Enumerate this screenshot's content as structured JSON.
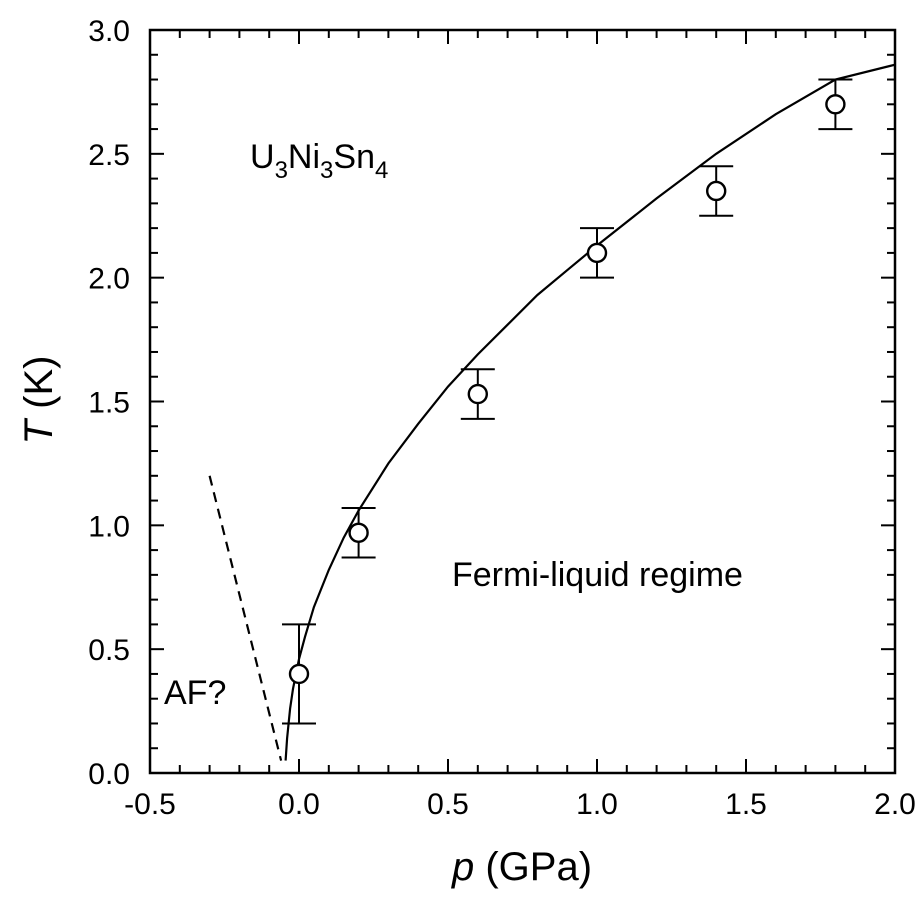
{
  "chart_data": {
    "type": "scatter",
    "title": "",
    "xlabel_var": "p",
    "xlabel_unit": "(GPa)",
    "ylabel_var": "T",
    "ylabel_unit": "(K)",
    "xlim": [
      -0.5,
      2.0
    ],
    "ylim": [
      0.0,
      3.0
    ],
    "x_ticks": [
      "-0.5",
      "0.0",
      "0.5",
      "1.0",
      "1.5",
      "2.0"
    ],
    "y_ticks": [
      "0.0",
      "0.5",
      "1.0",
      "1.5",
      "2.0",
      "2.5",
      "3.0"
    ],
    "grid": false,
    "series": [
      {
        "marker": "open-circle",
        "x": [
          0.0,
          0.2,
          0.6,
          1.0,
          1.4,
          1.8
        ],
        "y": [
          0.4,
          0.97,
          1.53,
          2.1,
          2.35,
          2.7
        ],
        "yerr_low": [
          0.2,
          0.1,
          0.1,
          0.1,
          0.1,
          0.1
        ],
        "yerr_high": [
          0.2,
          0.1,
          0.1,
          0.1,
          0.1,
          0.1
        ]
      }
    ],
    "fit_curve": {
      "style": "solid",
      "x": [
        -0.045,
        -0.04,
        -0.03,
        -0.02,
        -0.01,
        0.0,
        0.02,
        0.05,
        0.1,
        0.15,
        0.2,
        0.3,
        0.4,
        0.5,
        0.6,
        0.7,
        0.8,
        0.9,
        1.0,
        1.2,
        1.4,
        1.6,
        1.8,
        2.0
      ],
      "y": [
        0.05,
        0.14,
        0.26,
        0.34,
        0.4,
        0.46,
        0.55,
        0.67,
        0.82,
        0.95,
        1.06,
        1.25,
        1.41,
        1.56,
        1.69,
        1.81,
        1.93,
        2.03,
        2.13,
        2.32,
        2.5,
        2.66,
        2.8,
        2.86
      ]
    },
    "boundary_line": {
      "style": "dashed",
      "x": [
        -0.3,
        -0.06
      ],
      "y": [
        1.2,
        0.05
      ]
    },
    "annotations": {
      "compound": {
        "parts": [
          [
            "U",
            "base"
          ],
          [
            "3",
            "sub"
          ],
          [
            "Ni",
            "base"
          ],
          [
            "3",
            "sub"
          ],
          [
            "Sn",
            "base"
          ],
          [
            "4",
            "sub"
          ]
        ]
      },
      "fl_region": "Fermi-liquid regime",
      "af_region": "AF?"
    }
  }
}
